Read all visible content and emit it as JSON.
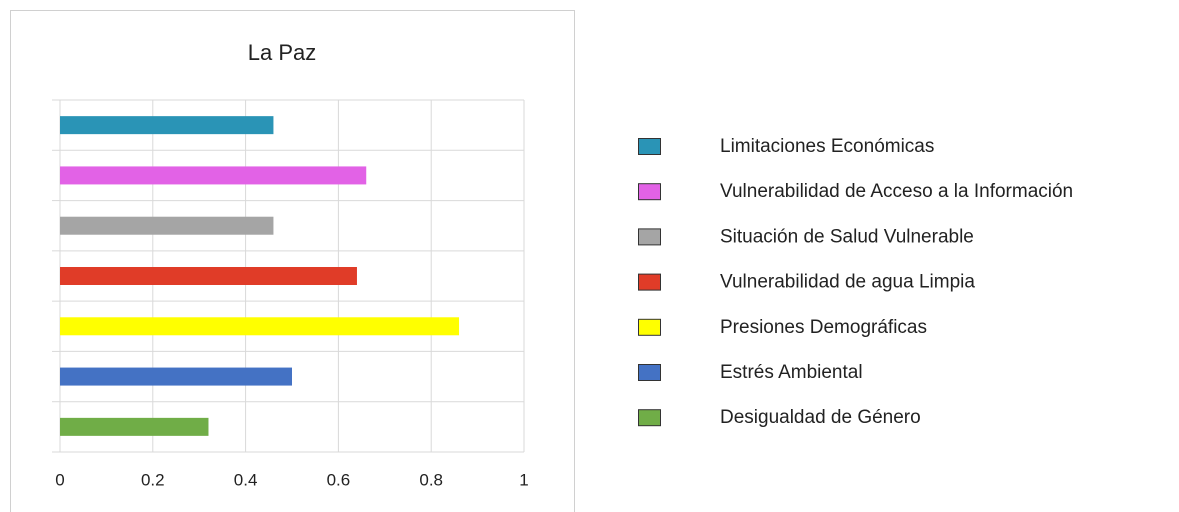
{
  "chart_data": {
    "type": "bar",
    "orientation": "horizontal",
    "title": "La Paz",
    "series": [
      {
        "name": "Limitaciones Económicas",
        "color": "#2a94b6",
        "values": [
          0.46
        ]
      },
      {
        "name": "Vulnerabilidad de Acceso a la Información",
        "color": "#e262e6",
        "values": [
          0.66
        ]
      },
      {
        "name": "Situación de Salud Vulnerable",
        "color": "#a5a5a5",
        "values": [
          0.46
        ]
      },
      {
        "name": "Vulnerabilidad de agua Limpia",
        "color": "#e03c28",
        "values": [
          0.64
        ]
      },
      {
        "name": "Presiones Demográficas",
        "color": "#ffff00",
        "values": [
          0.86
        ]
      },
      {
        "name": "Estrés Ambiental",
        "color": "#4472c4",
        "values": [
          0.5
        ]
      },
      {
        "name": "Desigualdad de Género",
        "color": "#70ad47",
        "values": [
          0.32
        ]
      }
    ],
    "xlim": [
      0,
      1
    ],
    "xticks": [
      0,
      0.2,
      0.4,
      0.6,
      0.8,
      1
    ],
    "grid": true,
    "legend": "right"
  }
}
